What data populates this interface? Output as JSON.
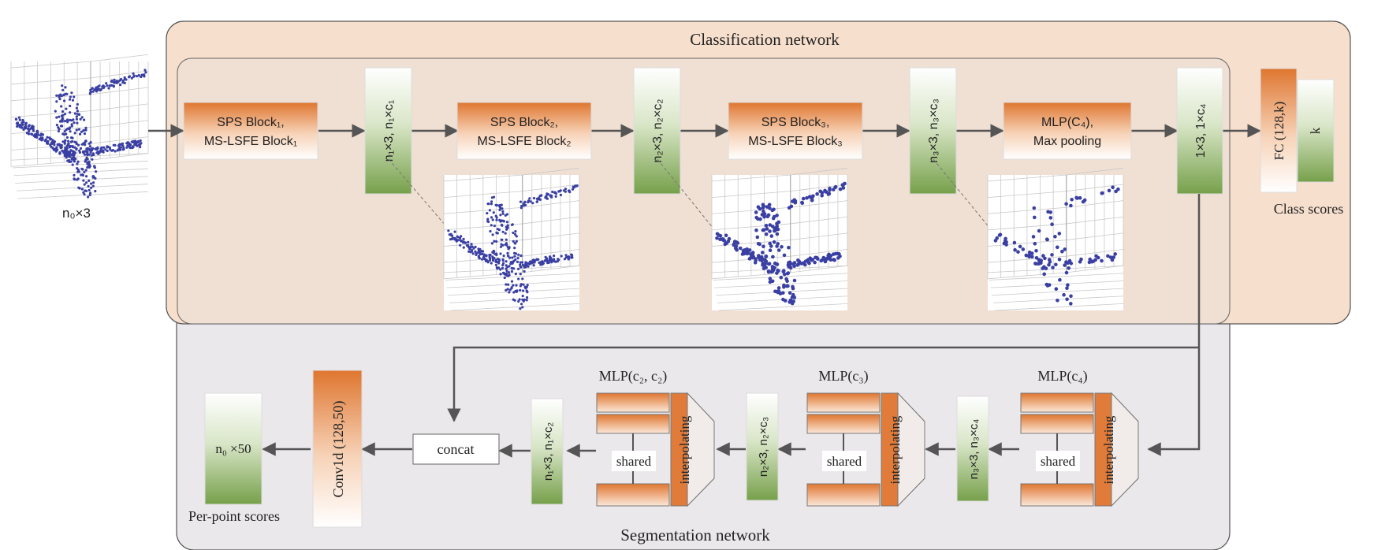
{
  "classification": {
    "title": "Classification network",
    "input_label": "n₀×3",
    "blocks": [
      {
        "line1": "SPS Block₁,",
        "line2": "MS-LSFE Block₁"
      },
      {
        "line1": "SPS Block₂,",
        "line2": "MS-LSFE Block₂"
      },
      {
        "line1": "SPS Block₃,",
        "line2": "MS-LSFE Block₃"
      },
      {
        "line1": "MLP(C₄),",
        "line2": "Max pooling"
      }
    ],
    "features": [
      "n₁×3,  n₁×c₁",
      "n₂×3,  n₂×c₂",
      "n₃×3,  n₃×c₃",
      "1×3,  1×c₄"
    ],
    "fc_label": "FC (128,k)",
    "k_label": "k",
    "class_scores": "Class scores"
  },
  "segmentation": {
    "title": "Segmentation network",
    "mlp_labels": [
      "MLP(c₂, c₂)",
      "MLP(c₃)",
      "MLP(c₄)"
    ],
    "shared_label": "shared",
    "interp_label": "interpolating",
    "features": [
      "n₁×3,  n₁×c₂",
      "n₂×3,  n₂×c₃",
      "n₃×3,  n₃×c₄"
    ],
    "concat_label": "concat",
    "conv_label": "Conv1d  (128,50)",
    "output_label": "n₀ ×50",
    "per_point": "Per-point scores"
  },
  "colors": {
    "orange": "#e07b39",
    "green": "#7fa653",
    "peach_panel": "#f8e0cf",
    "grey_panel": "#ebe8ec",
    "points": "#3a3fa3"
  }
}
